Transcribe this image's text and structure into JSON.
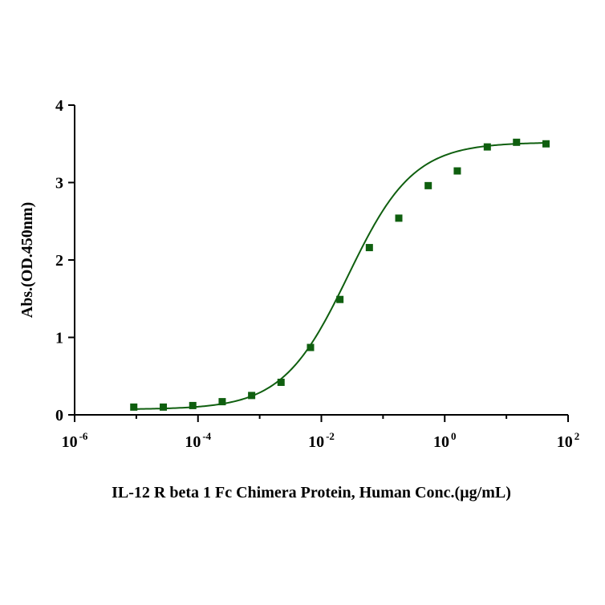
{
  "chart_data": {
    "type": "scatter",
    "title": "",
    "xlabel": "IL-12 R beta 1 Fc Chimera Protein, Human  Conc.(µg/mL)",
    "ylabel": "Abs.(OD.450nm)",
    "x_scale": "log",
    "xlim": [
      1e-06,
      100
    ],
    "ylim": [
      0,
      4
    ],
    "x_ticks": [
      {
        "base": "10",
        "exp": "-6"
      },
      {
        "base": "10",
        "exp": "-4"
      },
      {
        "base": "10",
        "exp": "-2"
      },
      {
        "base": "10",
        "exp": "0"
      },
      {
        "base": "10",
        "exp": "2"
      }
    ],
    "y_ticks": [
      "0",
      "1",
      "2",
      "3",
      "4"
    ],
    "grid": false,
    "colors": {
      "series": "#0f5f0f",
      "axis": "#000000"
    },
    "series": [
      {
        "marker": "square",
        "x": [
          9.1e-06,
          2.74e-05,
          8.23e-05,
          0.000247,
          0.000741,
          0.00222,
          0.00667,
          0.02,
          0.06,
          0.18,
          0.54,
          1.6,
          4.9,
          14.6,
          43.9
        ],
        "y": [
          0.1,
          0.1,
          0.12,
          0.17,
          0.25,
          0.42,
          0.87,
          1.49,
          2.16,
          2.54,
          2.96,
          3.15,
          3.46,
          3.52,
          3.5
        ]
      }
    ],
    "fit_curve": {
      "model": "4PL",
      "bottom": 0.07,
      "top": 3.52,
      "ec50": 0.027,
      "hill": 0.82
    }
  }
}
